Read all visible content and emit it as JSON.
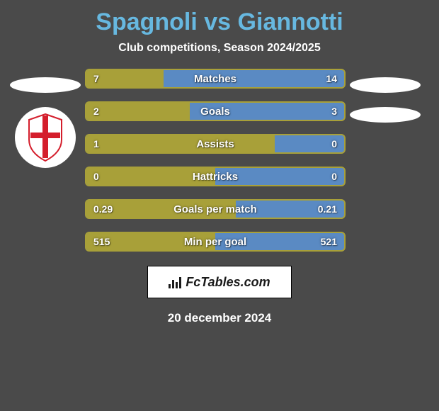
{
  "title": "Spagnoli vs Giannotti",
  "subtitle": "Club competitions, Season 2024/2025",
  "colors": {
    "background": "#4a4a4a",
    "title_color": "#67b8e0",
    "text_color": "#ffffff",
    "left_bar": "#a8a039",
    "right_bar": "#5a8ac3",
    "badge_bg": "#ffffff",
    "badge_red": "#d41e2c"
  },
  "bars": [
    {
      "label": "Matches",
      "left_val": "7",
      "right_val": "14",
      "left_pct": 30,
      "right_pct": 70
    },
    {
      "label": "Goals",
      "left_val": "2",
      "right_val": "3",
      "left_pct": 40,
      "right_pct": 60
    },
    {
      "label": "Assists",
      "left_val": "1",
      "right_val": "0",
      "left_pct": 73,
      "right_pct": 27
    },
    {
      "label": "Hattricks",
      "left_val": "0",
      "right_val": "0",
      "left_pct": 50,
      "right_pct": 50
    },
    {
      "label": "Goals per match",
      "left_val": "0.29",
      "right_val": "0.21",
      "left_pct": 58,
      "right_pct": 42
    },
    {
      "label": "Min per goal",
      "left_val": "515",
      "right_val": "521",
      "left_pct": 50,
      "right_pct": 50
    }
  ],
  "bar_style": {
    "height": 28,
    "gap": 18,
    "border_radius": 6,
    "label_fontsize": 15,
    "value_fontsize": 14
  },
  "footer": {
    "logo_text": "FcTables.com",
    "date": "20 december 2024"
  },
  "left_badge": {
    "has_shield": true,
    "shield_colors": {
      "bg": "#ffffff",
      "cross": "#d41e2c"
    }
  },
  "right_badge": {
    "has_shield": false
  }
}
